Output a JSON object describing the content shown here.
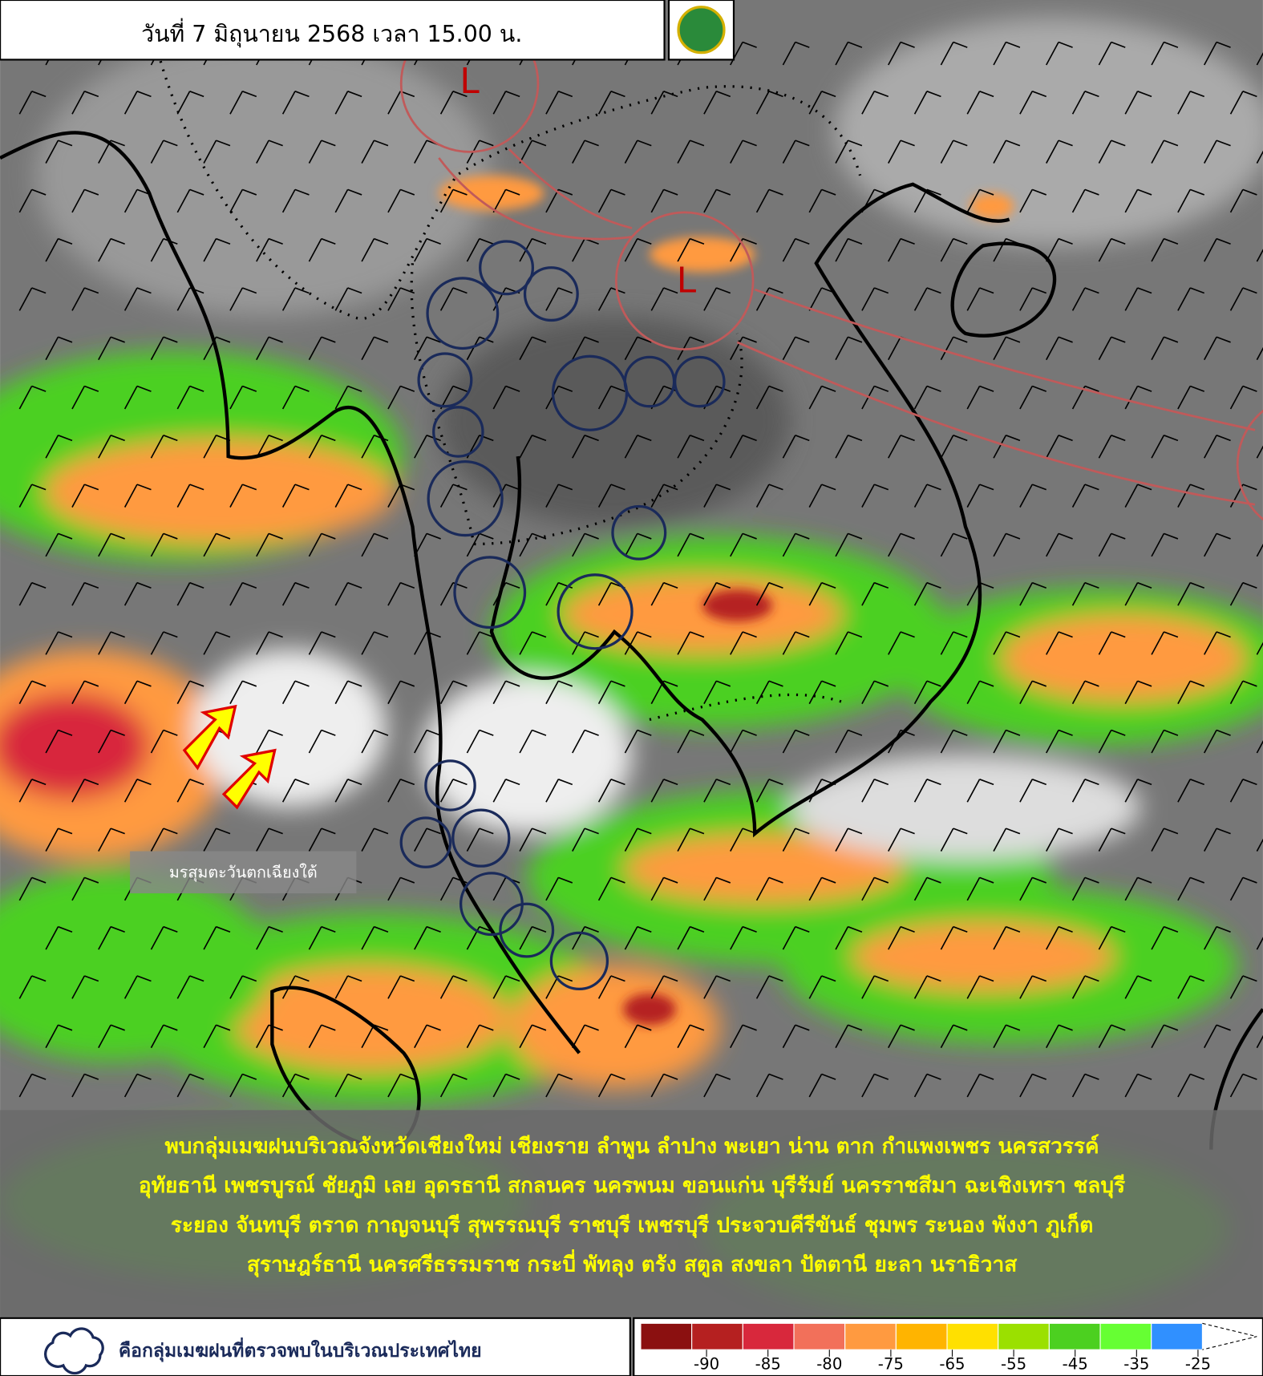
{
  "header": {
    "title": "วันที่ 7 มิถุนายน 2568 เวลา 15.00 น."
  },
  "map": {
    "lows": [
      "L",
      "L"
    ],
    "label": "มรสุมตะวันตกเฉียงใต้"
  },
  "summary": {
    "lines": [
      "พบกลุ่มเมฆฝนบริเวณจังหวัดเชียงใหม่ เชียงราย ลำพูน ลำปาง พะเยา น่าน ตาก กำแพงเพชร นครสวรรค์",
      "อุทัยธานี เพชรบูรณ์ ชัยภูมิ เลย อุดรธานี สกลนคร นครพนม ขอนแก่น บุรีรัมย์ นครราชสีมา ฉะเชิงเทรา ชลบุรี",
      "ระยอง จันทบุรี ตราด กาญจนบุรี สุพรรณบุรี ราชบุรี เพชรบุรี ประจวบคีรีขันธ์  ชุมพร ระนอง พังงา ภูเก็ต",
      "สุราษฎร์ธานี นครศรีธรรมราช กระบี่ พัทลุง ตรัง สตูล  สงขลา ปัตตานี ยะลา นราธิวาส"
    ]
  },
  "legend": {
    "text": "คือกลุ่มเมฆฝนที่ตรวจพบในบริเวณประเทศไทย"
  },
  "colorbar": {
    "ticks": [
      -90,
      -85,
      -80,
      -75,
      -65,
      -55,
      -45,
      -35,
      -25
    ],
    "colors": [
      "#8b1010",
      "#b52020",
      "#d8283c",
      "#f2705a",
      "#ff9a40",
      "#ffb400",
      "#ffe000",
      "#9be000",
      "#4cd020",
      "#66ff33",
      "#3090ff"
    ]
  }
}
